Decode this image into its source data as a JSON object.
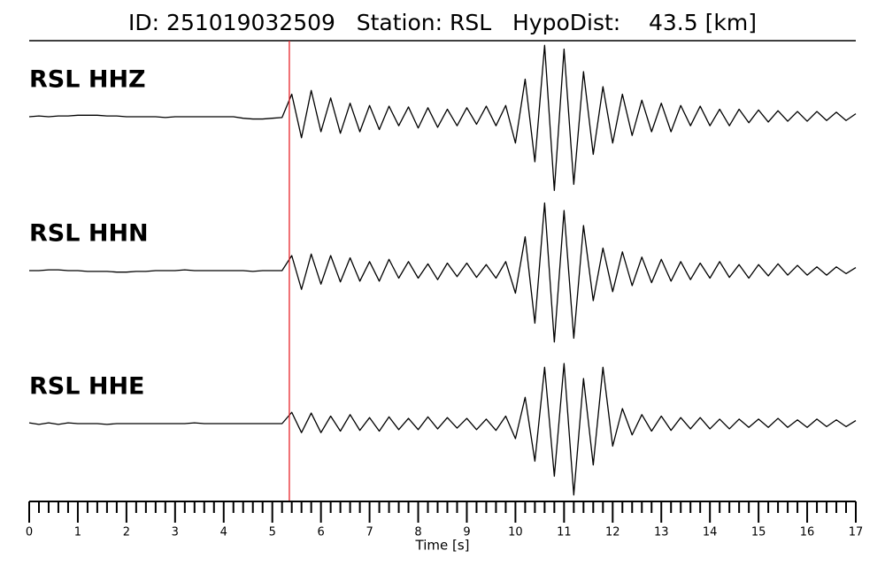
{
  "chart_data": {
    "type": "waveform",
    "title": "ID: 251019032509   Station: RSL   HypoDist:    43.5 [km]",
    "xlabel": "Time [s]",
    "xlim": [
      0,
      17
    ],
    "xticks": [
      0,
      1,
      2,
      3,
      4,
      5,
      6,
      7,
      8,
      9,
      10,
      11,
      12,
      13,
      14,
      15,
      16,
      17
    ],
    "xminor_divisions": 5,
    "ylim": [
      -1,
      1
    ],
    "pick_time": 5.35,
    "pick_color": "#e8232a",
    "label_color": "#4e9a06",
    "x": [
      0,
      0.2,
      0.4,
      0.6,
      0.8,
      1,
      1.2,
      1.4,
      1.6,
      1.8,
      2,
      2.2,
      2.4,
      2.6,
      2.8,
      3,
      3.2,
      3.4,
      3.6,
      3.8,
      4,
      4.2,
      4.4,
      4.6,
      4.8,
      5,
      5.2,
      5.4,
      5.6,
      5.8,
      6,
      6.2,
      6.4,
      6.6,
      6.8,
      7,
      7.2,
      7.4,
      7.6,
      7.8,
      8,
      8.2,
      8.4,
      8.6,
      8.8,
      9,
      9.2,
      9.4,
      9.6,
      9.8,
      10,
      10.2,
      10.4,
      10.6,
      10.8,
      11,
      11.2,
      11.4,
      11.6,
      11.8,
      12,
      12.2,
      12.4,
      12.6,
      12.8,
      13,
      13.2,
      13.4,
      13.6,
      13.8,
      14,
      14.2,
      14.4,
      14.6,
      14.8,
      15,
      15.2,
      15.4,
      15.6,
      15.8,
      16,
      16.2,
      16.4,
      16.6,
      16.8,
      17
    ],
    "series": [
      {
        "name": "RSL HHZ",
        "color": "#000000",
        "values": [
          0,
          0.01,
          0,
          0.01,
          0.01,
          0.02,
          0.02,
          0.02,
          0.01,
          0.01,
          0,
          0,
          0,
          0,
          -0.01,
          0,
          0,
          0,
          0,
          0,
          0,
          0,
          -0.02,
          -0.03,
          -0.03,
          -0.02,
          -0.01,
          0.3,
          -0.28,
          0.35,
          -0.2,
          0.25,
          -0.22,
          0.18,
          -0.2,
          0.15,
          -0.17,
          0.14,
          -0.12,
          0.13,
          -0.15,
          0.12,
          -0.14,
          0.1,
          -0.12,
          0.12,
          -0.1,
          0.14,
          -0.12,
          0.15,
          -0.35,
          0.5,
          -0.6,
          0.95,
          -0.98,
          0.9,
          -0.9,
          0.6,
          -0.5,
          0.4,
          -0.35,
          0.3,
          -0.25,
          0.22,
          -0.2,
          0.18,
          -0.2,
          0.15,
          -0.12,
          0.14,
          -0.12,
          0.1,
          -0.12,
          0.1,
          -0.08,
          0.09,
          -0.07,
          0.08,
          -0.06,
          0.07,
          -0.06,
          0.07,
          -0.05,
          0.06,
          -0.05,
          0.04
        ]
      },
      {
        "name": "RSL HHN",
        "color": "#000000",
        "values": [
          0,
          0,
          0.01,
          0.01,
          0,
          0,
          -0.01,
          -0.01,
          -0.01,
          -0.02,
          -0.02,
          -0.01,
          -0.01,
          0,
          0,
          0,
          0.01,
          0,
          0,
          0,
          0,
          0,
          0,
          -0.01,
          0,
          0,
          0,
          0.2,
          -0.25,
          0.22,
          -0.18,
          0.2,
          -0.15,
          0.17,
          -0.14,
          0.12,
          -0.14,
          0.15,
          -0.1,
          0.12,
          -0.1,
          0.09,
          -0.12,
          0.1,
          -0.08,
          0.1,
          -0.09,
          0.08,
          -0.1,
          0.12,
          -0.3,
          0.45,
          -0.7,
          0.9,
          -0.95,
          0.8,
          -0.9,
          0.6,
          -0.4,
          0.3,
          -0.28,
          0.25,
          -0.2,
          0.18,
          -0.16,
          0.15,
          -0.14,
          0.12,
          -0.12,
          0.1,
          -0.1,
          0.12,
          -0.09,
          0.08,
          -0.1,
          0.08,
          -0.07,
          0.09,
          -0.06,
          0.07,
          -0.06,
          0.05,
          -0.06,
          0.05,
          -0.04,
          0.04
        ]
      },
      {
        "name": "RSL HHE",
        "color": "#000000",
        "values": [
          0.01,
          -0.01,
          0.01,
          -0.01,
          0.01,
          0,
          0,
          0,
          -0.01,
          0,
          0,
          0,
          0,
          0,
          0,
          0,
          0,
          0.01,
          0,
          0,
          0,
          0,
          0,
          0,
          0,
          0,
          0,
          0.15,
          -0.12,
          0.14,
          -0.12,
          0.1,
          -0.1,
          0.12,
          -0.09,
          0.08,
          -0.1,
          0.09,
          -0.08,
          0.07,
          -0.08,
          0.09,
          -0.07,
          0.08,
          -0.06,
          0.07,
          -0.08,
          0.06,
          -0.09,
          0.1,
          -0.2,
          0.35,
          -0.5,
          0.75,
          -0.7,
          0.8,
          -0.95,
          0.6,
          -0.55,
          0.75,
          -0.3,
          0.2,
          -0.15,
          0.12,
          -0.1,
          0.1,
          -0.09,
          0.08,
          -0.07,
          0.08,
          -0.07,
          0.06,
          -0.07,
          0.06,
          -0.05,
          0.06,
          -0.05,
          0.07,
          -0.05,
          0.05,
          -0.05,
          0.06,
          -0.04,
          0.05,
          -0.04,
          0.04
        ]
      }
    ]
  }
}
